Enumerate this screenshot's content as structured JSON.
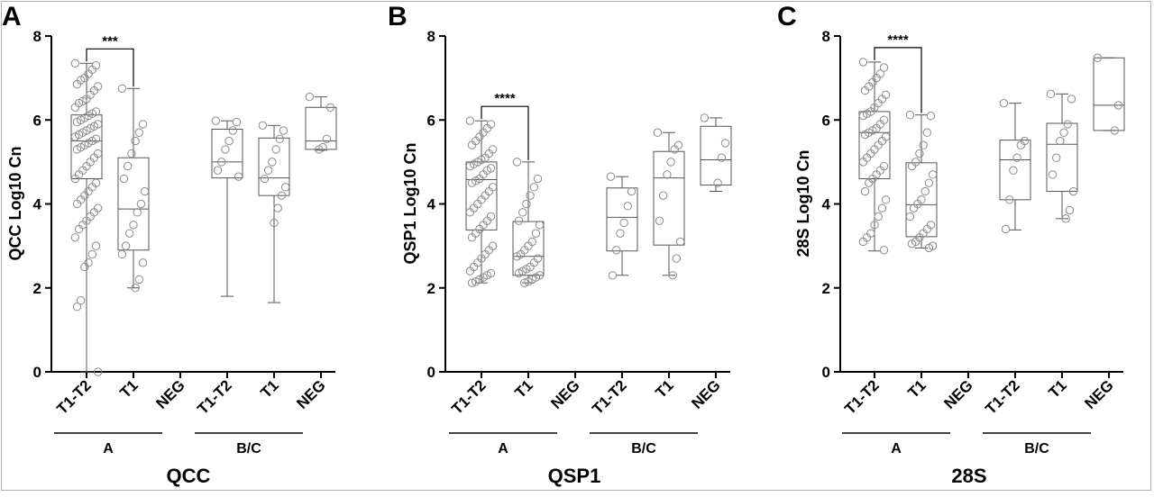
{
  "chart_data": [
    {
      "type": "box",
      "panel_letter": "A",
      "title": "QCC",
      "ylabel": "QCC Log10 Cn",
      "ylim": [
        0,
        8
      ],
      "yticks": [
        0,
        2,
        4,
        6,
        8
      ],
      "categories": [
        "T1-T2",
        "T1",
        "NEG",
        "T1-T2",
        "T1",
        "NEG"
      ],
      "groups": [
        {
          "label": "A",
          "from": 0,
          "to": 2
        },
        {
          "label": "B/C",
          "from": 3,
          "to": 5
        }
      ],
      "significance": [
        {
          "from": 0,
          "to": 1,
          "label": "***"
        }
      ],
      "boxes": [
        {
          "category": "T1-T2",
          "group": "A",
          "min": 0.0,
          "q1": 4.6,
          "median": 5.5,
          "q3": 6.12,
          "max": 7.35,
          "points": [
            7.35,
            7.3,
            7.2,
            7.1,
            7.0,
            6.95,
            6.85,
            6.8,
            6.7,
            6.6,
            6.5,
            6.45,
            6.4,
            6.3,
            6.2,
            6.15,
            6.1,
            6.05,
            6.0,
            5.95,
            5.9,
            5.85,
            5.8,
            5.75,
            5.7,
            5.65,
            5.6,
            5.55,
            5.5,
            5.45,
            5.4,
            5.35,
            5.3,
            5.2,
            5.1,
            5.0,
            4.9,
            4.8,
            4.7,
            4.6,
            4.5,
            4.4,
            4.3,
            4.2,
            4.1,
            4.0,
            3.9,
            3.8,
            3.7,
            3.6,
            3.5,
            3.4,
            3.2,
            3.0,
            2.8,
            2.6,
            2.5,
            1.7,
            1.55,
            0.0
          ]
        },
        {
          "category": "T1",
          "group": "A",
          "min": 2.0,
          "q1": 2.9,
          "median": 3.88,
          "q3": 5.1,
          "max": 6.75,
          "points": [
            6.75,
            5.9,
            5.7,
            5.5,
            5.2,
            4.9,
            4.6,
            4.3,
            4.0,
            3.8,
            3.5,
            3.3,
            3.0,
            2.8,
            2.6,
            2.2,
            2.0
          ]
        },
        {
          "category": "NEG",
          "group": "A",
          "points": []
        },
        {
          "category": "T1-T2",
          "group": "B/C",
          "min": 1.8,
          "q1": 4.62,
          "median": 5.0,
          "q3": 5.78,
          "max": 5.98,
          "points": [
            5.98,
            5.95,
            5.75,
            5.5,
            5.3,
            5.0,
            4.8,
            4.65
          ]
        },
        {
          "category": "T1",
          "group": "B/C",
          "min": 1.65,
          "q1": 4.2,
          "median": 4.62,
          "q3": 5.57,
          "max": 5.87,
          "points": [
            5.87,
            5.75,
            5.55,
            5.3,
            5.0,
            4.8,
            4.6,
            4.4,
            4.2,
            3.9,
            3.55
          ]
        },
        {
          "category": "NEG",
          "group": "B/C",
          "min": 5.28,
          "q1": 5.3,
          "median": 5.5,
          "q3": 6.3,
          "max": 6.55,
          "points": [
            6.55,
            6.3,
            5.55,
            5.35,
            5.3
          ]
        }
      ]
    },
    {
      "type": "box",
      "panel_letter": "B",
      "title": "QSP1",
      "ylabel": "QSP1 Log10 Cn",
      "ylim": [
        0,
        8
      ],
      "yticks": [
        0,
        2,
        4,
        6,
        8
      ],
      "categories": [
        "T1-T2",
        "T1",
        "NEG",
        "T1-T2",
        "T1",
        "NEG"
      ],
      "groups": [
        {
          "label": "A",
          "from": 0,
          "to": 2
        },
        {
          "label": "B/C",
          "from": 3,
          "to": 5
        }
      ],
      "significance": [
        {
          "from": 0,
          "to": 1,
          "label": "****"
        }
      ],
      "boxes": [
        {
          "category": "T1-T2",
          "group": "A",
          "min": 2.12,
          "q1": 3.38,
          "median": 4.58,
          "q3": 5.0,
          "max": 5.98,
          "points": [
            5.98,
            5.9,
            5.8,
            5.7,
            5.6,
            5.5,
            5.4,
            5.3,
            5.2,
            5.1,
            5.05,
            5.0,
            4.95,
            4.9,
            4.85,
            4.8,
            4.7,
            4.6,
            4.55,
            4.5,
            4.4,
            4.3,
            4.2,
            4.1,
            4.0,
            3.9,
            3.8,
            3.7,
            3.6,
            3.5,
            3.4,
            3.3,
            3.2,
            3.0,
            2.9,
            2.8,
            2.7,
            2.6,
            2.5,
            2.4,
            2.35,
            2.3,
            2.25,
            2.2,
            2.15,
            2.12
          ]
        },
        {
          "category": "T1",
          "group": "A",
          "min": 2.12,
          "q1": 2.3,
          "median": 2.75,
          "q3": 3.58,
          "max": 5.0,
          "points": [
            5.0,
            4.6,
            4.4,
            4.2,
            4.0,
            3.8,
            3.6,
            3.5,
            3.3,
            3.1,
            3.0,
            2.9,
            2.8,
            2.75,
            2.7,
            2.6,
            2.5,
            2.45,
            2.4,
            2.35,
            2.3,
            2.25,
            2.2,
            2.15,
            2.12
          ]
        },
        {
          "category": "NEG",
          "group": "A",
          "points": []
        },
        {
          "category": "T1-T2",
          "group": "B/C",
          "min": 2.3,
          "q1": 2.88,
          "median": 3.68,
          "q3": 4.38,
          "max": 4.65,
          "points": [
            4.65,
            4.3,
            3.95,
            3.55,
            3.3,
            2.9,
            2.3
          ]
        },
        {
          "category": "T1",
          "group": "B/C",
          "min": 2.3,
          "q1": 3.02,
          "median": 4.62,
          "q3": 5.25,
          "max": 5.7,
          "points": [
            5.7,
            5.4,
            5.3,
            5.0,
            4.7,
            4.2,
            3.6,
            3.1,
            2.7,
            2.3
          ]
        },
        {
          "category": "NEG",
          "group": "B/C",
          "min": 4.3,
          "q1": 4.45,
          "median": 5.05,
          "q3": 5.85,
          "max": 6.05,
          "points": [
            6.05,
            5.45,
            5.1,
            4.5
          ]
        }
      ]
    },
    {
      "type": "box",
      "panel_letter": "C",
      "title": "28S",
      "ylabel": "28S Log10 Cn",
      "ylim": [
        0,
        8
      ],
      "yticks": [
        0,
        2,
        4,
        6,
        8
      ],
      "categories": [
        "T1-T2",
        "T1",
        "NEG",
        "T1-T2",
        "T1",
        "NEG"
      ],
      "groups": [
        {
          "label": "A",
          "from": 0,
          "to": 2
        },
        {
          "label": "B/C",
          "from": 3,
          "to": 5
        }
      ],
      "significance": [
        {
          "from": 0,
          "to": 1,
          "label": "****"
        }
      ],
      "boxes": [
        {
          "category": "T1-T2",
          "group": "A",
          "min": 2.88,
          "q1": 4.6,
          "median": 5.7,
          "q3": 6.2,
          "max": 7.38,
          "points": [
            7.38,
            7.25,
            7.1,
            7.0,
            6.9,
            6.8,
            6.7,
            6.6,
            6.5,
            6.4,
            6.3,
            6.2,
            6.15,
            6.1,
            6.0,
            5.9,
            5.8,
            5.75,
            5.7,
            5.65,
            5.6,
            5.5,
            5.4,
            5.3,
            5.2,
            5.1,
            5.0,
            4.9,
            4.8,
            4.7,
            4.6,
            4.5,
            4.3,
            4.1,
            3.9,
            3.7,
            3.5,
            3.3,
            3.2,
            3.1,
            2.9
          ]
        },
        {
          "category": "T1",
          "group": "A",
          "min": 2.95,
          "q1": 3.22,
          "median": 3.98,
          "q3": 4.98,
          "max": 6.12,
          "points": [
            6.12,
            6.1,
            5.7,
            5.4,
            5.2,
            5.0,
            4.9,
            4.7,
            4.5,
            4.3,
            4.1,
            4.0,
            3.9,
            3.7,
            3.5,
            3.4,
            3.3,
            3.2,
            3.1,
            3.05,
            3.0,
            2.95
          ]
        },
        {
          "category": "NEG",
          "group": "A",
          "points": []
        },
        {
          "category": "T1-T2",
          "group": "B/C",
          "min": 3.38,
          "q1": 4.1,
          "median": 5.05,
          "q3": 5.52,
          "max": 6.4,
          "points": [
            6.4,
            5.5,
            5.4,
            5.1,
            4.8,
            4.1,
            3.4
          ]
        },
        {
          "category": "T1",
          "group": "B/C",
          "min": 3.65,
          "q1": 4.3,
          "median": 5.42,
          "q3": 5.92,
          "max": 6.62,
          "points": [
            6.62,
            6.5,
            5.9,
            5.7,
            5.5,
            5.1,
            4.7,
            4.3,
            3.85,
            3.65
          ]
        },
        {
          "category": "NEG",
          "group": "B/C",
          "min": 5.75,
          "q1": 5.75,
          "median": 6.35,
          "q3": 7.48,
          "max": 7.48,
          "points": [
            7.48,
            6.35,
            5.75
          ]
        }
      ]
    }
  ]
}
